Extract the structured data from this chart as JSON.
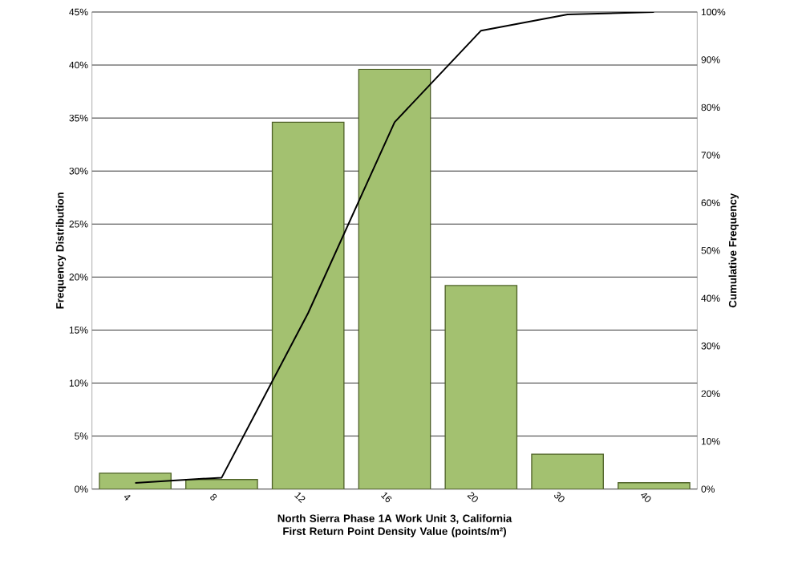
{
  "chart_data": {
    "type": "bar",
    "xlabel": "North Sierra Phase 1A Work Unit 3, California First Return Point Density Value (points/m²)",
    "ylabel": "Frequency Distribution",
    "y2label": "Cumulative Frequency",
    "categories": [
      "4",
      "8",
      "12",
      "16",
      "20",
      "30",
      "40"
    ],
    "series": [
      {
        "color": "#a3c170",
        "values": [
          1.5,
          0.9,
          34.6,
          39.6,
          19.2,
          3.3,
          0.6
        ]
      },
      {
        "type": "line",
        "color": "#000000",
        "axis": "y2",
        "values": [
          1.3,
          2.4,
          36.9,
          76.9,
          96.1,
          99.5,
          100
        ]
      }
    ],
    "ylim": [
      0,
      45
    ],
    "yticks": [
      {
        "value": 0,
        "label": "0%"
      },
      {
        "value": 5,
        "label": "5%"
      },
      {
        "value": 10,
        "label": "10%"
      },
      {
        "value": 15,
        "label": "15%"
      },
      {
        "value": 20,
        "label": "20%"
      },
      {
        "value": 25,
        "label": "25%"
      },
      {
        "value": 30,
        "label": "30%"
      },
      {
        "value": 35,
        "label": "35%"
      },
      {
        "value": 40,
        "label": "40%"
      },
      {
        "value": 45,
        "label": "45%"
      }
    ],
    "y2lim": [
      0,
      100
    ],
    "y2ticks": [
      {
        "value": 0,
        "label": "0%"
      },
      {
        "value": 10,
        "label": "10%"
      },
      {
        "value": 20,
        "label": "20%"
      },
      {
        "value": 30,
        "label": "30%"
      },
      {
        "value": 40,
        "label": "40%"
      },
      {
        "value": 50,
        "label": "50%"
      },
      {
        "value": 60,
        "label": "60%"
      },
      {
        "value": 70,
        "label": "70%"
      },
      {
        "value": 80,
        "label": "80%"
      },
      {
        "value": 90,
        "label": "90%"
      },
      {
        "value": 100,
        "label": "100%"
      }
    ],
    "grid": "y"
  }
}
